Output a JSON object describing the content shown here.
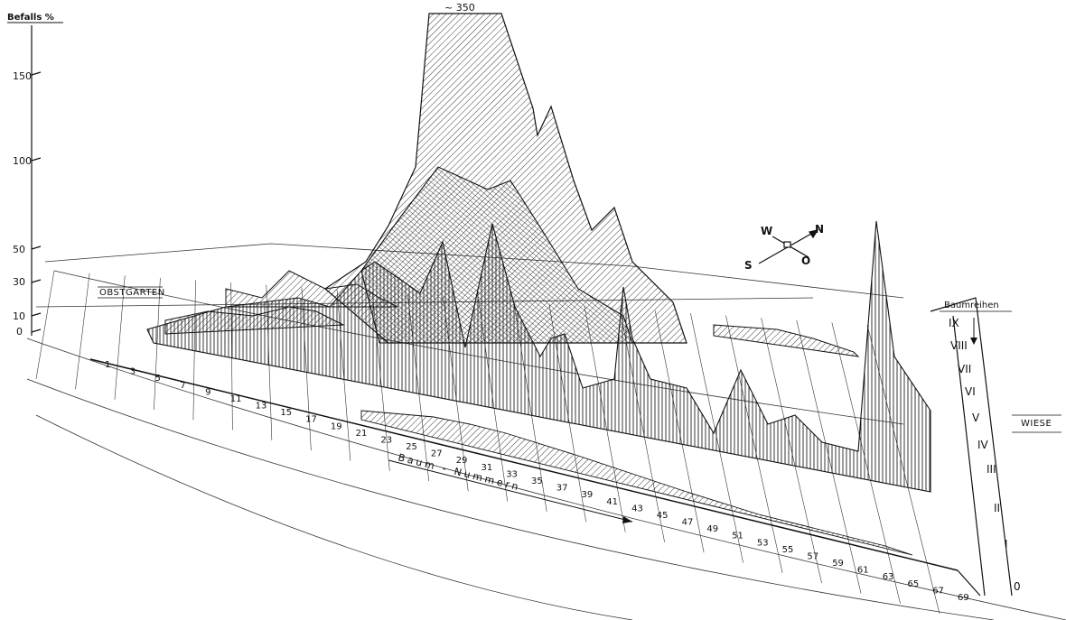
{
  "chart_data": {
    "type": "area",
    "ylabel": "Befalls %",
    "yticks": [
      "150",
      "100",
      "50",
      "30",
      "10",
      "0"
    ],
    "peak_label": "~ 350",
    "xlabel": "Baum - Nummern",
    "x_ticks": [
      "1",
      "3",
      "5",
      "7",
      "9",
      "11",
      "13",
      "15",
      "17",
      "19",
      "21",
      "23",
      "25",
      "27",
      "29",
      "31",
      "33",
      "35",
      "37",
      "39",
      "41",
      "43",
      "45",
      "47",
      "49",
      "51",
      "53",
      "55",
      "57",
      "59",
      "61",
      "63",
      "65",
      "67",
      "69"
    ],
    "rows_label": "Baumreihen",
    "rows": [
      "0",
      "I",
      "II",
      "III",
      "IV",
      "V",
      "VI",
      "VII",
      "VIII",
      "IX"
    ],
    "area_left": "OBSTGARTEN",
    "area_right": "WIESE",
    "compass": {
      "W": "W",
      "N": "N",
      "S": "S",
      "O": "O"
    },
    "series": [
      {
        "row": "V",
        "values": [
          2,
          3,
          5,
          12,
          20,
          30,
          48,
          45,
          60,
          35,
          52,
          80,
          95,
          110,
          100,
          95,
          65,
          55,
          30,
          45,
          42,
          20,
          35,
          20,
          15,
          10,
          8,
          20,
          55,
          100
        ]
      },
      {
        "row": "VI",
        "values": [
          5,
          8,
          12,
          18,
          15,
          25,
          30,
          60,
          55,
          40,
          350,
          340,
          300,
          250,
          220,
          140,
          120,
          90,
          70,
          40,
          30,
          25,
          20,
          15,
          12,
          10,
          8,
          6,
          5,
          4
        ]
      },
      {
        "row": "VII",
        "values": [
          3,
          4,
          6,
          8,
          10,
          15,
          20,
          25,
          30,
          60,
          80,
          70,
          60,
          40,
          30,
          25,
          20,
          15,
          10,
          8,
          6,
          5,
          4,
          3,
          3,
          2,
          2,
          2,
          2,
          2
        ]
      },
      {
        "row": "VIII",
        "values": [
          4,
          6,
          8,
          10,
          12,
          15,
          12,
          10,
          8,
          6,
          5,
          4,
          3,
          3,
          2,
          2,
          2,
          2,
          2,
          2,
          2,
          2,
          2,
          2,
          2,
          2,
          2,
          2,
          40,
          90
        ]
      },
      {
        "row": "IX",
        "values": [
          2,
          3,
          4,
          5,
          6,
          8,
          10,
          12,
          15,
          20,
          18,
          15,
          12,
          10,
          8,
          6,
          5,
          4,
          3,
          3,
          2,
          2,
          2,
          2,
          2,
          2,
          2,
          2,
          2,
          2
        ]
      }
    ]
  }
}
